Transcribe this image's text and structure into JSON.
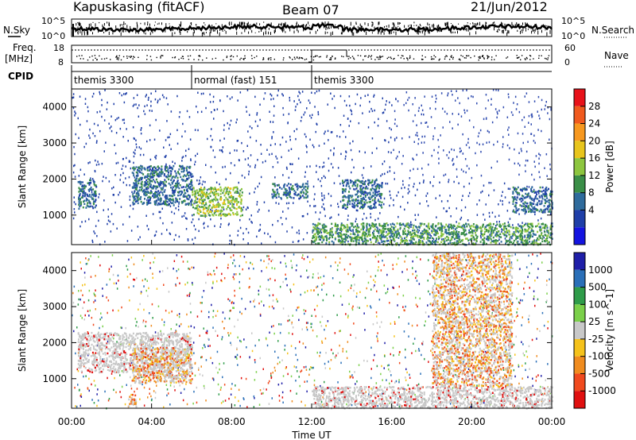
{
  "header": {
    "station": "Kapuskasing (fitACF)",
    "beam": "Beam 07",
    "date": "21/Jun/2012"
  },
  "left_labels": {
    "nsky": "N.Sky",
    "freq": "Freq.",
    "freq_unit": "[MHz]",
    "cpid": "CPID"
  },
  "right_labels": {
    "nsearch": "N.Search",
    "nave": "Nave"
  },
  "noise_panel": {
    "ticks_left": [
      "10^5",
      "10^0"
    ],
    "ticks_right": [
      "10^5",
      "10^0"
    ]
  },
  "freq_panel": {
    "ticks_left": [
      "18",
      "8"
    ],
    "ticks_right": [
      "60",
      "0"
    ]
  },
  "cpid_segments": [
    {
      "label": "themis 3300",
      "start_h": 0,
      "end_h": 6
    },
    {
      "label": "normal (fast) 151",
      "start_h": 6,
      "end_h": 12
    },
    {
      "label": "themis 3300",
      "start_h": 12,
      "end_h": 24
    }
  ],
  "x_axis": {
    "label": "Time UT",
    "ticks": [
      "00:00",
      "04:00",
      "08:00",
      "12:00",
      "16:00",
      "20:00",
      "00:00"
    ]
  },
  "y_axis": {
    "label": "Slant Range [km]",
    "ticks": [
      "4000",
      "3000",
      "2000",
      "1000"
    ]
  },
  "power_colorbar": {
    "label": "Power [dB]",
    "ticks": [
      "28",
      "24",
      "20",
      "16",
      "12",
      "8",
      "4"
    ],
    "colors": [
      "#e8121a",
      "#f05a1e",
      "#f7981f",
      "#e8c51c",
      "#8dc63f",
      "#3b8f48",
      "#2f6b9c",
      "#1f3fa8",
      "#1414e0"
    ]
  },
  "velocity_colorbar": {
    "label": "Velocity [m s^-1]",
    "ticks": [
      "1000",
      "500",
      "100",
      "25",
      "-25",
      "-100",
      "-500",
      "-1000"
    ],
    "colors": [
      "#1f1fa8",
      "#2a6fb8",
      "#2f9c4a",
      "#7bd04a",
      "#c8c8c8",
      "#f5c21b",
      "#f08c1f",
      "#f04a1e",
      "#e01010"
    ]
  },
  "chart_data": [
    {
      "type": "heatmap",
      "title": "Kapuskasing (fitACF) Beam 07 21/Jun/2012",
      "panel": "power",
      "xlabel": "Time UT",
      "ylabel": "Slant Range [km]",
      "xlim": [
        0,
        24
      ],
      "ylim": [
        180,
        4500
      ],
      "colorbar_label": "Power [dB]",
      "colorbar_range": [
        0,
        30
      ],
      "features": [
        {
          "t": [
            0.3,
            1.2
          ],
          "range_km": [
            1200,
            2000
          ],
          "power_db": 6
        },
        {
          "t": [
            3.0,
            6.0
          ],
          "range_km": [
            1300,
            2400
          ],
          "power_db": 6
        },
        {
          "t": [
            6.0,
            8.5
          ],
          "range_km": [
            1000,
            1800
          ],
          "power_db": 16
        },
        {
          "t": [
            10.0,
            11.8
          ],
          "range_km": [
            1500,
            1900
          ],
          "power_db": 8
        },
        {
          "t": [
            12.0,
            24.0
          ],
          "range_km": [
            200,
            800
          ],
          "power_db": 12
        },
        {
          "t": [
            13.5,
            15.5
          ],
          "range_km": [
            1200,
            2000
          ],
          "power_db": 6
        },
        {
          "t": [
            22.0,
            24.0
          ],
          "range_km": [
            1100,
            1800
          ],
          "power_db": 6
        }
      ]
    },
    {
      "type": "heatmap",
      "panel": "velocity",
      "xlabel": "Time UT",
      "ylabel": "Slant Range [km]",
      "xlim": [
        0,
        24
      ],
      "ylim": [
        180,
        4500
      ],
      "colorbar_label": "Velocity [m s^-1]",
      "colorbar_range": [
        -1000,
        1000
      ],
      "features": [
        {
          "t": [
            0.3,
            6.0
          ],
          "range_km": [
            1200,
            2300
          ],
          "velocity_ms": 0
        },
        {
          "t": [
            3.0,
            6.0
          ],
          "range_km": [
            900,
            1900
          ],
          "velocity_ms": -150
        },
        {
          "t": [
            2.8,
            3.2
          ],
          "range_km": [
            200,
            600
          ],
          "velocity_ms": -300
        },
        {
          "t": [
            12.0,
            24.0
          ],
          "range_km": [
            200,
            800
          ],
          "velocity_ms": 0
        },
        {
          "t": [
            18.0,
            22.0
          ],
          "range_km": [
            800,
            4500
          ],
          "velocity_ms": -200
        }
      ]
    }
  ]
}
